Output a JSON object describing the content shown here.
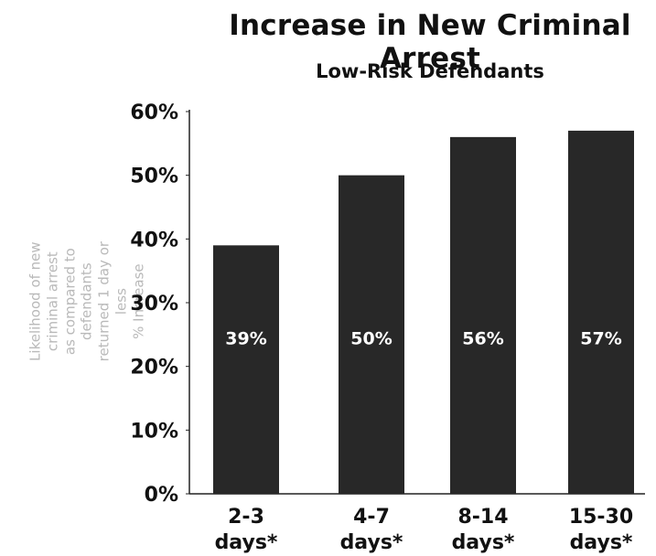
{
  "chart_data": {
    "type": "bar",
    "title": "Increase in New Criminal Arrest",
    "subtitle": "Low-Risk Defendants",
    "ylabel": "Likelihood of new criminal arrest\nas compared to defendants\nreturned 1 day or less\n% Increase",
    "categories": [
      [
        "2-3",
        "days*"
      ],
      [
        "4-7",
        "days*"
      ],
      [
        "8-14",
        "days*"
      ],
      [
        "15-30",
        "days*"
      ]
    ],
    "values": [
      39,
      50,
      56,
      57
    ],
    "value_labels": [
      "39%",
      "50%",
      "56%",
      "57%"
    ],
    "y_ticks": [
      "0%",
      "10%",
      "20%",
      "30%",
      "40%",
      "50%",
      "60%"
    ],
    "ylim": [
      0,
      60
    ],
    "grid": false,
    "colors": {
      "bar": "#282828",
      "axis": "#222222",
      "label_text": "#ffffff"
    }
  }
}
